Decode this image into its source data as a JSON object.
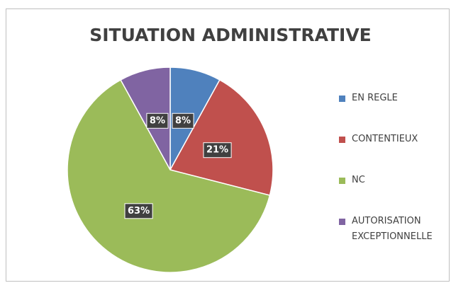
{
  "chart_data": {
    "type": "pie",
    "title": "SITUATION  ADMINISTRATIVE",
    "categories": [
      "EN REGLE",
      "CONTENTIEUX",
      "NC",
      "AUTORISATION EXCEPTIONNELLE"
    ],
    "values": [
      8,
      21,
      63,
      8
    ],
    "value_labels": [
      "8%",
      "21%",
      "63%",
      "8%"
    ],
    "colors": [
      "#4f81bd",
      "#c0504d",
      "#9bbb59",
      "#8064a2"
    ],
    "legend": "right"
  }
}
